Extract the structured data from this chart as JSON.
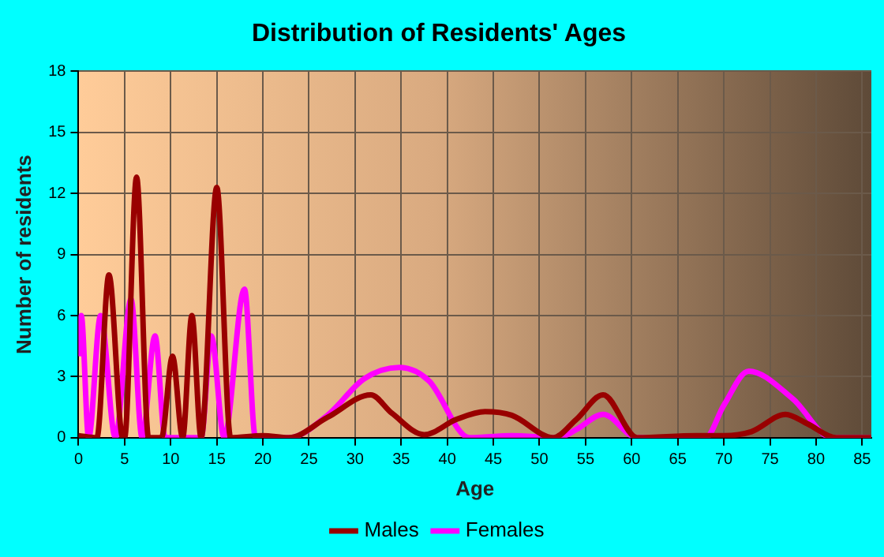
{
  "chart_data": {
    "type": "line",
    "title": "Distribution of Residents' Ages",
    "xlabel": "Age",
    "ylabel": "Number of residents",
    "xlim": [
      0,
      86
    ],
    "xticks": [
      0,
      5,
      10,
      15,
      20,
      25,
      30,
      35,
      40,
      45,
      50,
      55,
      60,
      65,
      70,
      75,
      80,
      85
    ],
    "ylim": [
      0,
      18
    ],
    "yticks": [
      0,
      3,
      6,
      9,
      12,
      15,
      18
    ],
    "grid": true,
    "legend": "bottom",
    "marker": "none",
    "series": [
      {
        "name": "Males",
        "color": "#990000",
        "x": [
          0,
          2,
          3.3,
          4.8,
          5,
          6.3,
          7.6,
          9,
          10.2,
          11.3,
          12.3,
          13.3,
          15,
          16.5,
          20,
          22.8,
          27,
          31.7,
          34,
          37.5,
          41,
          44.1,
          47,
          51.5,
          54,
          56.9,
          60.6,
          67,
          70,
          73,
          76.7,
          79,
          82.2,
          86
        ],
        "values": [
          0.1,
          0,
          8,
          0,
          0,
          12.8,
          0,
          0,
          4,
          0,
          6,
          0,
          12.3,
          0,
          0.1,
          0,
          1,
          2.1,
          1.2,
          0.15,
          0.9,
          1.28,
          1.1,
          0,
          0.9,
          2.1,
          0,
          0.1,
          0.1,
          0.3,
          1.15,
          0.7,
          0,
          0
        ]
      },
      {
        "name": "Females",
        "color": "#ff00ff",
        "x": [
          0,
          0.3,
          1.1,
          2.4,
          4,
          5.7,
          6.9,
          8.3,
          9.4,
          13.3,
          14.4,
          15.8,
          18,
          19.2,
          22.8,
          27,
          31,
          34.8,
          38,
          42.4,
          47,
          52,
          54,
          56.9,
          60.6,
          68,
          70,
          72.7,
          77.5,
          81.7,
          86
        ],
        "values": [
          4,
          6,
          0,
          6,
          0,
          6.8,
          0,
          5,
          0,
          0,
          5,
          0,
          7.3,
          0,
          0,
          1.1,
          2.9,
          3.45,
          2.8,
          0,
          0.1,
          0,
          0.4,
          1.15,
          0,
          0,
          1.6,
          3.27,
          1.9,
          0,
          0
        ]
      }
    ]
  }
}
